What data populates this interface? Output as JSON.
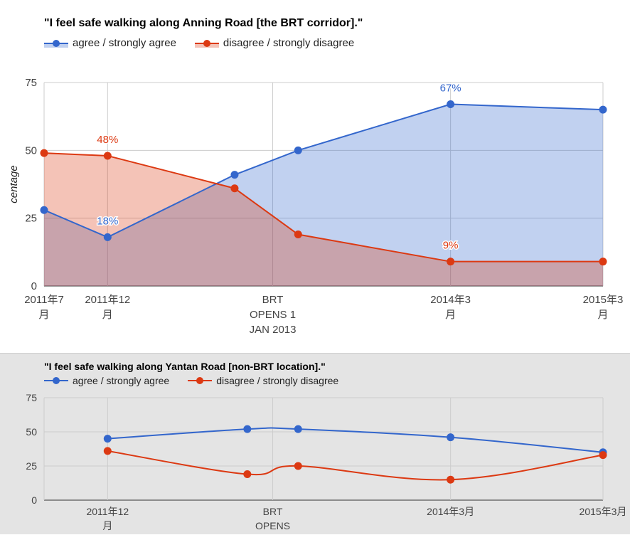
{
  "colors": {
    "agree": "#3366cc",
    "disagree": "#dc3912",
    "grid": "#cccccc",
    "axis": "#333333",
    "label": "#444444"
  },
  "chart_data": [
    {
      "type": "area",
      "title": "\"I feel safe walking along Anning Road [the BRT corridor].\"",
      "ylabel": "centage",
      "ylim": [
        0,
        75
      ],
      "yticks": [
        0,
        25,
        50,
        75
      ],
      "x_ticks": [
        {
          "x": 0,
          "lines": [
            "2011年7",
            "月"
          ]
        },
        {
          "x": 5,
          "lines": [
            "2011年12",
            "月"
          ]
        },
        {
          "x": 18,
          "lines": [
            "BRT",
            "OPENS 1",
            "JAN 2013"
          ]
        },
        {
          "x": 32,
          "lines": [
            "2014年3",
            "月"
          ]
        },
        {
          "x": 44,
          "lines": [
            "2015年3",
            "月"
          ]
        }
      ],
      "xlim": [
        0,
        44
      ],
      "series": [
        {
          "name": "agree / strongly agree",
          "key": "agree",
          "points": [
            [
              0,
              28
            ],
            [
              5,
              18
            ],
            [
              15,
              41
            ],
            [
              20,
              50
            ],
            [
              32,
              67
            ],
            [
              44,
              65
            ]
          ],
          "labels": [
            {
              "x": 5,
              "y": 18,
              "text": "18%"
            },
            {
              "x": 32,
              "y": 67,
              "text": "67%"
            }
          ]
        },
        {
          "name": "disagree / strongly disagree",
          "key": "disagree",
          "points": [
            [
              0,
              49
            ],
            [
              5,
              48
            ],
            [
              15,
              36
            ],
            [
              20,
              19
            ],
            [
              32,
              9
            ],
            [
              44,
              9
            ]
          ],
          "labels": [
            {
              "x": 5,
              "y": 48,
              "text": "48%"
            },
            {
              "x": 32,
              "y": 9,
              "text": "9%"
            }
          ]
        }
      ]
    },
    {
      "type": "line",
      "title": "\"I feel safe walking along Yantan Road [non-BRT location].\"",
      "ylim": [
        0,
        75
      ],
      "yticks": [
        0,
        25,
        50,
        75
      ],
      "x_ticks": [
        {
          "x": 5,
          "lines": [
            "2011年12",
            "月"
          ]
        },
        {
          "x": 18,
          "lines": [
            "BRT",
            "OPENS"
          ]
        },
        {
          "x": 32,
          "lines": [
            "2014年3月"
          ]
        },
        {
          "x": 44,
          "lines": [
            "2015年3月"
          ]
        }
      ],
      "xlim": [
        0,
        44
      ],
      "series": [
        {
          "name": "agree / strongly agree",
          "key": "agree",
          "points": [
            [
              5,
              45
            ],
            [
              16,
              52
            ],
            [
              20,
              52
            ],
            [
              32,
              46
            ],
            [
              44,
              35
            ]
          ]
        },
        {
          "name": "disagree / strongly disagree",
          "key": "disagree",
          "points": [
            [
              5,
              36
            ],
            [
              16,
              19
            ],
            [
              20,
              25
            ],
            [
              32,
              15
            ],
            [
              44,
              33
            ]
          ]
        }
      ]
    }
  ]
}
